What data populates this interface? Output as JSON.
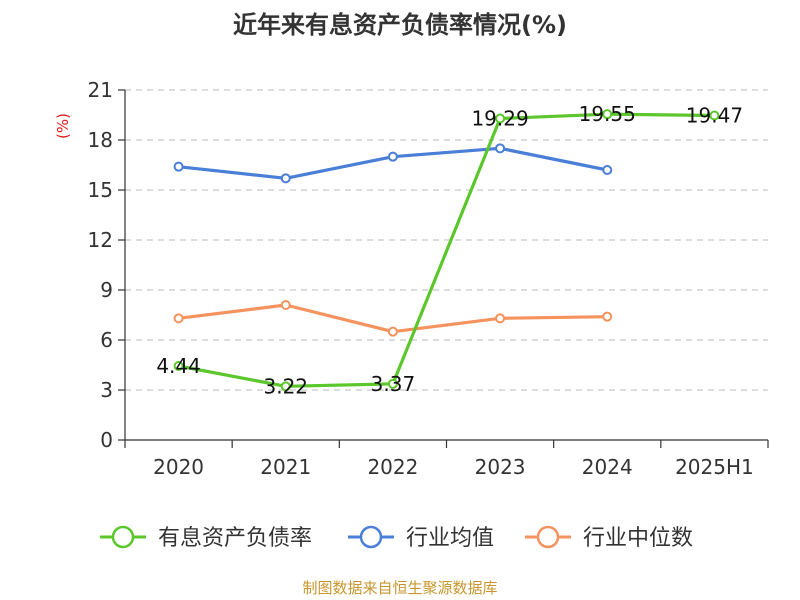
{
  "chart_data": {
    "type": "line",
    "title": "近年来有息资产负债率情况(%)",
    "ylabel": "(%)",
    "xlabel": "",
    "categories": [
      "2020",
      "2021",
      "2022",
      "2023",
      "2024",
      "2025H1"
    ],
    "ylim": [
      0,
      21
    ],
    "yticks": [
      0,
      3,
      6,
      9,
      12,
      15,
      18,
      21
    ],
    "grid": true,
    "legend_position": "bottom",
    "series": [
      {
        "name": "有息资产负债率",
        "color": "#5cc72c",
        "values": [
          4.44,
          3.22,
          3.37,
          19.29,
          19.55,
          19.47
        ],
        "labels": [
          "4.44",
          "3.22",
          "3.37",
          "19.29",
          "19.55",
          "19.47"
        ],
        "show_labels": true
      },
      {
        "name": "行业均值",
        "color": "#4a7fd8",
        "values": [
          16.4,
          15.7,
          17.0,
          17.5,
          16.2,
          null
        ],
        "show_labels": false
      },
      {
        "name": "行业中位数",
        "color": "#f5935f",
        "values": [
          7.3,
          8.1,
          6.5,
          7.3,
          7.4,
          null
        ],
        "show_labels": false
      }
    ],
    "source": "制图数据来自恒生聚源数据库"
  }
}
